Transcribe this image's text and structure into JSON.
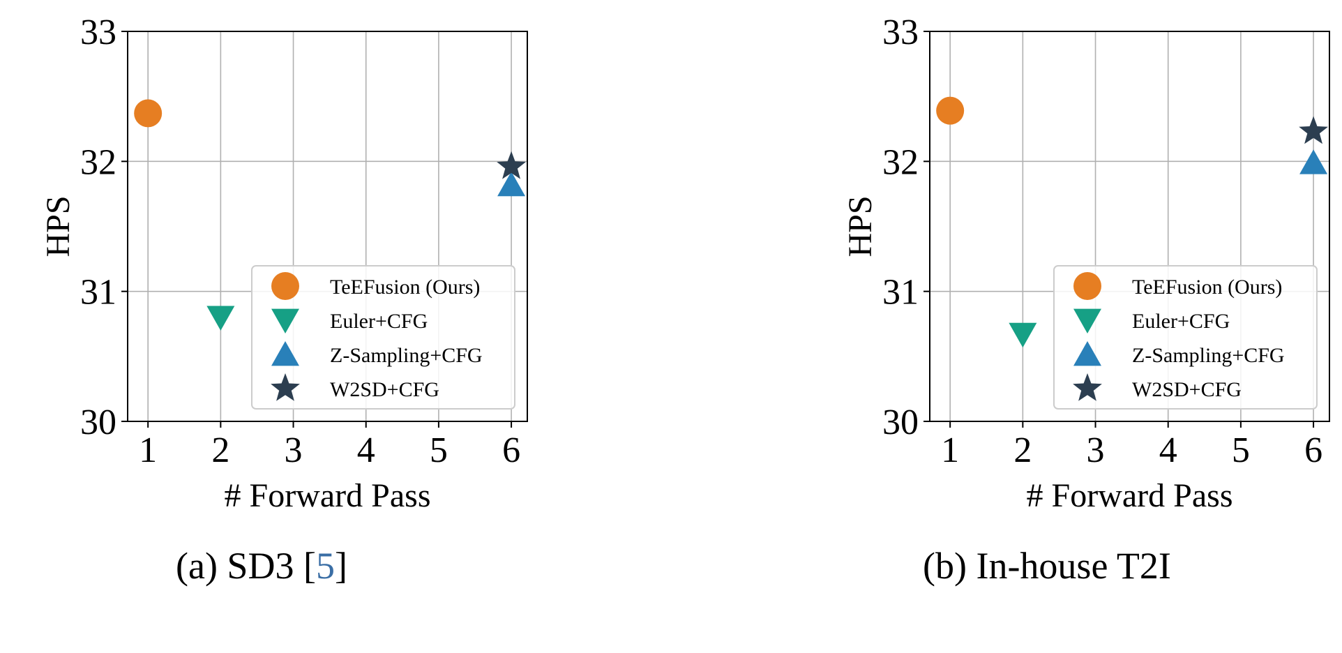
{
  "chart_data": [
    {
      "type": "scatter",
      "caption_prefix": "(a) SD3 [",
      "caption_cite": "5",
      "caption_suffix": "]",
      "xlabel": "# Forward Pass",
      "ylabel": "HPS",
      "xlim": [
        0.72,
        6.22
      ],
      "ylim": [
        30,
        33
      ],
      "xticks": [
        1,
        2,
        3,
        4,
        5,
        6
      ],
      "yticks": [
        30,
        31,
        32,
        33
      ],
      "grid": true,
      "legend_position": "lower right",
      "series": [
        {
          "name": "TeEFusion (Ours)",
          "marker": "circle",
          "color": "#e67e22",
          "points": [
            {
              "x": 1,
              "y": 32.37
            }
          ]
        },
        {
          "name": "Euler+CFG",
          "marker": "triangle-down",
          "color": "#16a085",
          "points": [
            {
              "x": 2,
              "y": 30.8
            }
          ]
        },
        {
          "name": "Z-Sampling+CFG",
          "marker": "triangle-up",
          "color": "#2980b9",
          "points": [
            {
              "x": 6,
              "y": 31.82
            }
          ]
        },
        {
          "name": "W2SD+CFG",
          "marker": "star",
          "color": "#2c3e50",
          "points": [
            {
              "x": 6,
              "y": 31.96
            }
          ]
        }
      ]
    },
    {
      "type": "scatter",
      "caption_prefix": "(b) In-house T2I",
      "caption_cite": "",
      "caption_suffix": "",
      "xlabel": "# Forward Pass",
      "ylabel": "HPS",
      "xlim": [
        0.72,
        6.22
      ],
      "ylim": [
        30,
        33
      ],
      "xticks": [
        1,
        2,
        3,
        4,
        5,
        6
      ],
      "yticks": [
        30,
        31,
        32,
        33
      ],
      "grid": true,
      "legend_position": "lower right",
      "series": [
        {
          "name": "TeEFusion (Ours)",
          "marker": "circle",
          "color": "#e67e22",
          "points": [
            {
              "x": 1,
              "y": 32.39
            }
          ]
        },
        {
          "name": "Euler+CFG",
          "marker": "triangle-down",
          "color": "#16a085",
          "points": [
            {
              "x": 2,
              "y": 30.67
            }
          ]
        },
        {
          "name": "Z-Sampling+CFG",
          "marker": "triangle-up",
          "color": "#2980b9",
          "points": [
            {
              "x": 6,
              "y": 31.99
            }
          ]
        },
        {
          "name": "W2SD+CFG",
          "marker": "star",
          "color": "#2c3e50",
          "points": [
            {
              "x": 6,
              "y": 32.23
            }
          ]
        }
      ]
    }
  ]
}
